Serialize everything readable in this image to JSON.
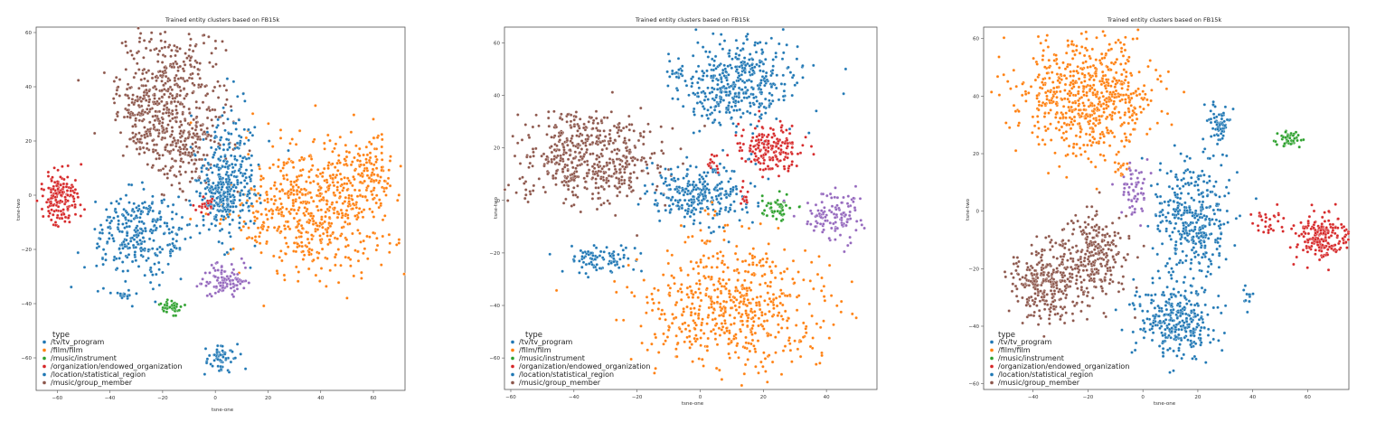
{
  "colors": {
    "tv_program": "#1f77b4",
    "film": "#ff7f0e",
    "instrument": "#2ca02c",
    "endowed_organization": "#d62728",
    "statistical_region": "#1f77b4",
    "group_member": "#8c564b",
    "purple_cluster": "#9467bd",
    "frame": "#555555"
  },
  "chart_data": [
    {
      "type": "scatter",
      "title": "Trained entity clusters based on FB15k",
      "xlabel": "tsne-one",
      "ylabel": "tsne-two",
      "xlim": [
        -68,
        72
      ],
      "ylim": [
        -72,
        62
      ],
      "xticks": [
        -60,
        -40,
        -20,
        0,
        20,
        40,
        60
      ],
      "yticks": [
        -60,
        -40,
        -20,
        0,
        20,
        40,
        60
      ],
      "legend": {
        "title": "type",
        "placement": "lower-left",
        "entries": [
          "/tv/tv_program",
          "/film/film",
          "/music/instrument",
          "/organization/endowed_organization",
          "/location/statistical_region",
          "/music/group_member"
        ]
      },
      "clusters": [
        {
          "color": "#8c564b",
          "cx": -17,
          "cy": 38,
          "sx": 10,
          "sy": 12,
          "n": 420
        },
        {
          "color": "#8c564b",
          "cx": -12,
          "cy": 18,
          "sx": 7,
          "sy": 8,
          "n": 150
        },
        {
          "color": "#8c564b",
          "cx": -28,
          "cy": 28,
          "sx": 5,
          "sy": 8,
          "n": 90
        },
        {
          "color": "#ff7f0e",
          "cx": 38,
          "cy": -5,
          "sx": 15,
          "sy": 12,
          "n": 620
        },
        {
          "color": "#ff7f0e",
          "cx": 58,
          "cy": 10,
          "sx": 5,
          "sy": 6,
          "n": 100
        },
        {
          "color": "#1f77b4",
          "cx": -28,
          "cy": -15,
          "sx": 9,
          "sy": 8,
          "n": 300
        },
        {
          "color": "#1f77b4",
          "cx": 5,
          "cy": 8,
          "sx": 6,
          "sy": 12,
          "n": 260
        },
        {
          "color": "#1f77b4",
          "cx": 2,
          "cy": 0,
          "sx": 3,
          "sy": 4,
          "n": 120
        },
        {
          "color": "#1f77b4",
          "cx": 2,
          "cy": -60,
          "sx": 3,
          "sy": 3,
          "n": 60
        },
        {
          "color": "#1f77b4",
          "cx": -34,
          "cy": -37,
          "sx": 2,
          "sy": 1,
          "n": 15
        },
        {
          "color": "#d62728",
          "cx": -59,
          "cy": -1,
          "sx": 4,
          "sy": 5,
          "n": 170
        },
        {
          "color": "#d62728",
          "cx": -3,
          "cy": -4,
          "sx": 2,
          "sy": 2,
          "n": 20
        },
        {
          "color": "#9467bd",
          "cx": 1,
          "cy": -32,
          "sx": 3,
          "sy": 3,
          "n": 60
        },
        {
          "color": "#9467bd",
          "cx": 8,
          "cy": -32,
          "sx": 3,
          "sy": 3,
          "n": 40
        },
        {
          "color": "#2ca02c",
          "cx": -17,
          "cy": -41,
          "sx": 2,
          "sy": 1.5,
          "n": 40
        }
      ]
    },
    {
      "type": "scatter",
      "title": "Trained entity clusters based on FB15k",
      "xlabel": "tsne-one",
      "ylabel": "tsne-two",
      "xlim": [
        -62,
        56
      ],
      "ylim": [
        -72,
        66
      ],
      "xticks": [
        -60,
        -40,
        -20,
        0,
        20,
        40
      ],
      "yticks": [
        -60,
        -40,
        -20,
        0,
        20,
        40,
        60
      ],
      "legend": {
        "title": "type",
        "placement": "lower-left",
        "entries": [
          "/tv/tv_program",
          "/film/film",
          "/music/instrument",
          "/organization/endowed_organization",
          "/location/statistical_region",
          "/music/group_member"
        ]
      },
      "clusters": [
        {
          "color": "#8c564b",
          "cx": -35,
          "cy": 15,
          "sx": 12,
          "sy": 8,
          "n": 480
        },
        {
          "color": "#8c564b",
          "cx": -40,
          "cy": 28,
          "sx": 5,
          "sy": 4,
          "n": 60
        },
        {
          "color": "#1f77b4",
          "cx": 12,
          "cy": 45,
          "sx": 9,
          "sy": 8,
          "n": 420
        },
        {
          "color": "#1f77b4",
          "cx": -7,
          "cy": 48,
          "sx": 1,
          "sy": 1,
          "n": 12
        },
        {
          "color": "#1f77b4",
          "cx": 0,
          "cy": 2,
          "sx": 8,
          "sy": 6,
          "n": 280
        },
        {
          "color": "#1f77b4",
          "cx": -32,
          "cy": -23,
          "sx": 6,
          "sy": 3,
          "n": 90
        },
        {
          "color": "#d62728",
          "cx": 22,
          "cy": 20,
          "sx": 5,
          "sy": 5,
          "n": 180
        },
        {
          "color": "#d62728",
          "cx": 4,
          "cy": 15,
          "sx": 2,
          "sy": 2,
          "n": 15
        },
        {
          "color": "#d62728",
          "cx": 14,
          "cy": 3,
          "sx": 1,
          "sy": 2,
          "n": 12
        },
        {
          "color": "#2ca02c",
          "cx": 24,
          "cy": -3,
          "sx": 2.5,
          "sy": 2.5,
          "n": 50
        },
        {
          "color": "#9467bd",
          "cx": 43,
          "cy": -6,
          "sx": 5,
          "sy": 5,
          "n": 120
        },
        {
          "color": "#ff7f0e",
          "cx": 10,
          "cy": -40,
          "sx": 14,
          "sy": 13,
          "n": 600
        }
      ]
    },
    {
      "type": "scatter",
      "title": "Trained entity clusters based on FB15k",
      "xlabel": "tsne-one",
      "ylabel": "tsne-two",
      "xlim": [
        -58,
        75
      ],
      "ylim": [
        -62,
        64
      ],
      "xticks": [
        -40,
        -20,
        0,
        20,
        40,
        60
      ],
      "yticks": [
        -60,
        -40,
        -20,
        0,
        20,
        40,
        60
      ],
      "legend": {
        "title": "type",
        "placement": "lower-left",
        "entries": [
          "/tv/tv_program",
          "/film/film",
          "/music/instrument",
          "/organization/endowed_organization",
          "/location/statistical_region",
          "/music/group_member"
        ]
      },
      "clusters": [
        {
          "color": "#ff7f0e",
          "cx": -20,
          "cy": 40,
          "sx": 12,
          "sy": 10,
          "n": 650
        },
        {
          "color": "#ff7f0e",
          "cx": -8,
          "cy": 15,
          "sx": 2,
          "sy": 2,
          "n": 15
        },
        {
          "color": "#9467bd",
          "cx": -4,
          "cy": 7,
          "sx": 2.5,
          "sy": 4,
          "n": 60
        },
        {
          "color": "#2ca02c",
          "cx": 53,
          "cy": 25,
          "sx": 2,
          "sy": 1.5,
          "n": 45
        },
        {
          "color": "#1f77b4",
          "cx": 28,
          "cy": 30,
          "sx": 2,
          "sy": 4,
          "n": 70
        },
        {
          "color": "#1f77b4",
          "cx": 18,
          "cy": -3,
          "sx": 7,
          "sy": 10,
          "n": 360
        },
        {
          "color": "#1f77b4",
          "cx": 12,
          "cy": -38,
          "sx": 7,
          "sy": 7,
          "n": 320
        },
        {
          "color": "#1f77b4",
          "cx": 38,
          "cy": -30,
          "sx": 1.5,
          "sy": 1.5,
          "n": 12
        },
        {
          "color": "#d62728",
          "cx": 65,
          "cy": -9,
          "sx": 5,
          "sy": 4,
          "n": 200
        },
        {
          "color": "#d62728",
          "cx": 45,
          "cy": -4,
          "sx": 3,
          "sy": 2,
          "n": 30
        },
        {
          "color": "#8c564b",
          "cx": -36,
          "cy": -25,
          "sx": 6,
          "sy": 7,
          "n": 300
        },
        {
          "color": "#8c564b",
          "cx": -18,
          "cy": -15,
          "sx": 6,
          "sy": 7,
          "n": 260
        }
      ]
    }
  ]
}
